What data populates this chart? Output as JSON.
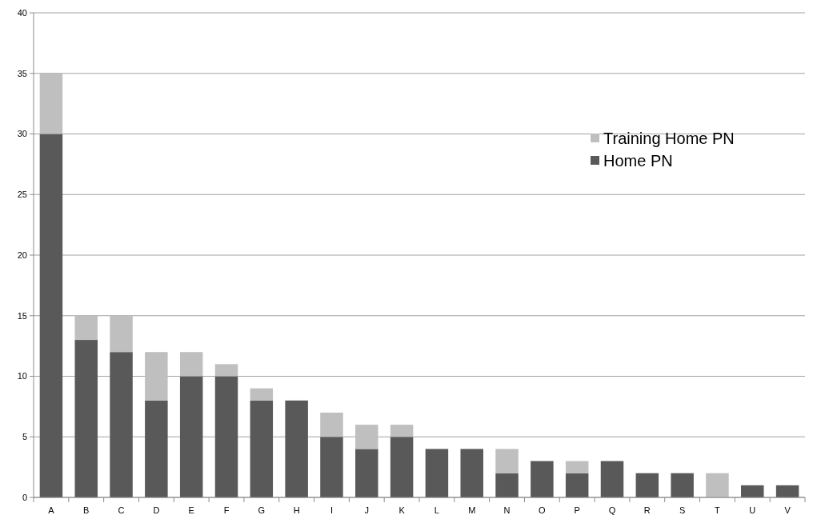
{
  "chart_data": {
    "type": "bar",
    "stacked": true,
    "categories": [
      "A",
      "B",
      "C",
      "D",
      "E",
      "F",
      "G",
      "H",
      "I",
      "J",
      "K",
      "L",
      "M",
      "N",
      "O",
      "P",
      "Q",
      "R",
      "S",
      "T",
      "U",
      "V"
    ],
    "series": [
      {
        "name": "Home PN",
        "color": "#595959",
        "values": [
          30,
          13,
          12,
          8,
          10,
          10,
          8,
          8,
          5,
          4,
          5,
          4,
          4,
          2,
          3,
          2,
          3,
          2,
          2,
          0,
          1,
          1
        ]
      },
      {
        "name": "Training Home PN",
        "color": "#bfbfbf",
        "values": [
          5,
          2,
          3,
          4,
          2,
          1,
          1,
          0,
          2,
          2,
          1,
          0,
          0,
          2,
          0,
          1,
          0,
          0,
          0,
          2,
          0,
          0
        ]
      }
    ],
    "ylim": [
      0,
      40
    ],
    "yticks": [
      0,
      5,
      10,
      15,
      20,
      25,
      30,
      35,
      40
    ],
    "grid": "y",
    "legend": "top right"
  }
}
